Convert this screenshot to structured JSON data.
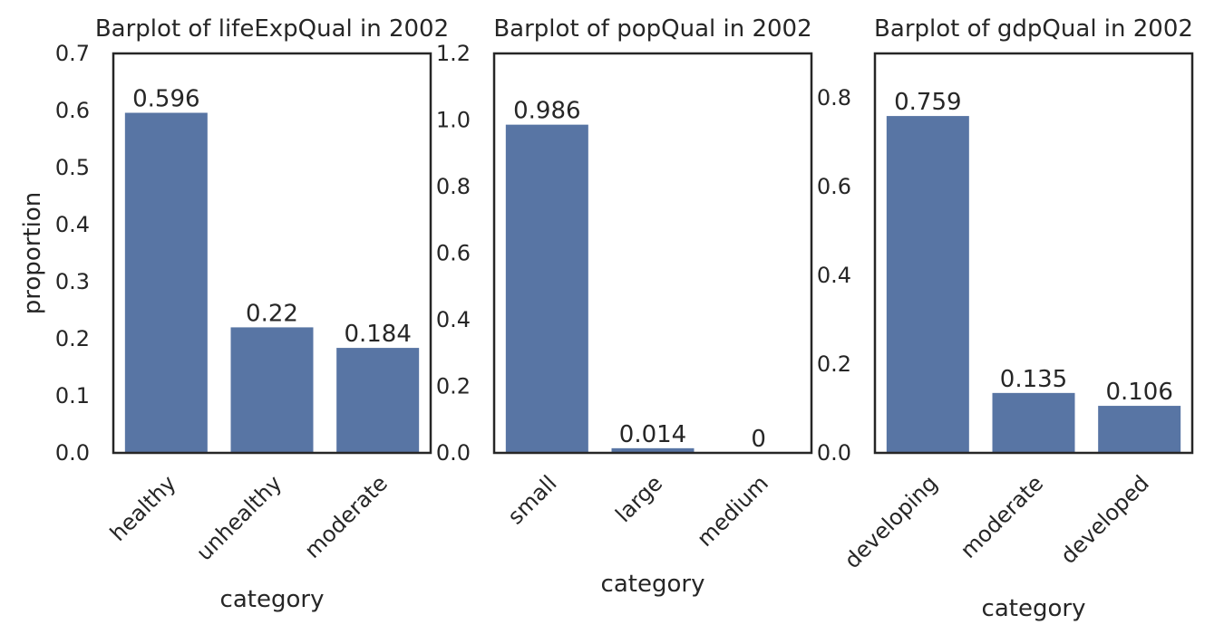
{
  "chart_data": [
    {
      "type": "bar",
      "title": "Barplot of lifeExpQual in 2002",
      "xlabel": "category",
      "ylabel": "proportion",
      "categories": [
        "healthy",
        "unhealthy",
        "moderate"
      ],
      "values": [
        0.596,
        0.22,
        0.184
      ],
      "value_labels": [
        "0.596",
        "0.22",
        "0.184"
      ],
      "ylim": [
        0,
        0.7
      ],
      "yticks": [
        0.0,
        0.1,
        0.2,
        0.3,
        0.4,
        0.5,
        0.6,
        0.7
      ],
      "ytick_labels": [
        "0.0",
        "0.1",
        "0.2",
        "0.3",
        "0.4",
        "0.5",
        "0.6",
        "0.7"
      ],
      "grid": false,
      "bar_color": "#5875a4"
    },
    {
      "type": "bar",
      "title": "Barplot of popQual in 2002",
      "xlabel": "category",
      "ylabel": "",
      "categories": [
        "small",
        "large",
        "medium"
      ],
      "values": [
        0.986,
        0.014,
        0
      ],
      "value_labels": [
        "0.986",
        "0.014",
        "0"
      ],
      "ylim": [
        0,
        1.2
      ],
      "yticks": [
        0.0,
        0.2,
        0.4,
        0.6,
        0.8,
        1.0,
        1.2
      ],
      "ytick_labels": [
        "0.0",
        "0.2",
        "0.4",
        "0.6",
        "0.8",
        "1.0",
        "1.2"
      ],
      "grid": false,
      "bar_color": "#5875a4"
    },
    {
      "type": "bar",
      "title": "Barplot of gdpQual in 2002",
      "xlabel": "category",
      "ylabel": "",
      "categories": [
        "developing",
        "moderate",
        "developed"
      ],
      "values": [
        0.759,
        0.135,
        0.106
      ],
      "value_labels": [
        "0.759",
        "0.135",
        "0.106"
      ],
      "ylim": [
        0,
        0.9
      ],
      "yticks": [
        0.0,
        0.2,
        0.4,
        0.6,
        0.8
      ],
      "ytick_labels": [
        "0.0",
        "0.2",
        "0.4",
        "0.6",
        "0.8"
      ],
      "grid": false,
      "bar_color": "#5875a4"
    }
  ]
}
